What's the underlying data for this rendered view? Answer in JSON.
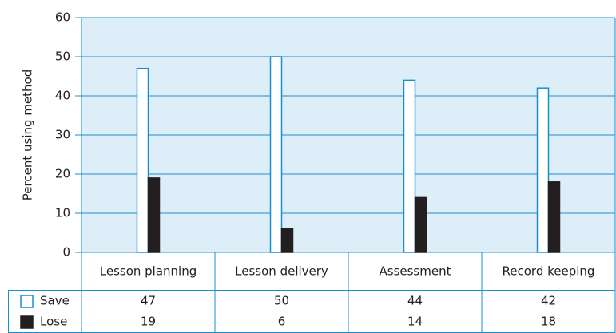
{
  "chart_data": {
    "type": "bar",
    "y_label": "Percent using method",
    "categories": [
      "Lesson planning",
      "Lesson delivery",
      "Assessment",
      "Record keeping"
    ],
    "series": [
      {
        "name": "Save",
        "color": "#ffffff",
        "values": [
          47,
          50,
          44,
          42
        ]
      },
      {
        "name": "Lose",
        "color": "#231f20",
        "values": [
          19,
          6,
          14,
          18
        ]
      }
    ],
    "ylim": [
      0,
      60
    ],
    "yticks": [
      0,
      10,
      20,
      30,
      40,
      50,
      60
    ],
    "grid": true
  }
}
